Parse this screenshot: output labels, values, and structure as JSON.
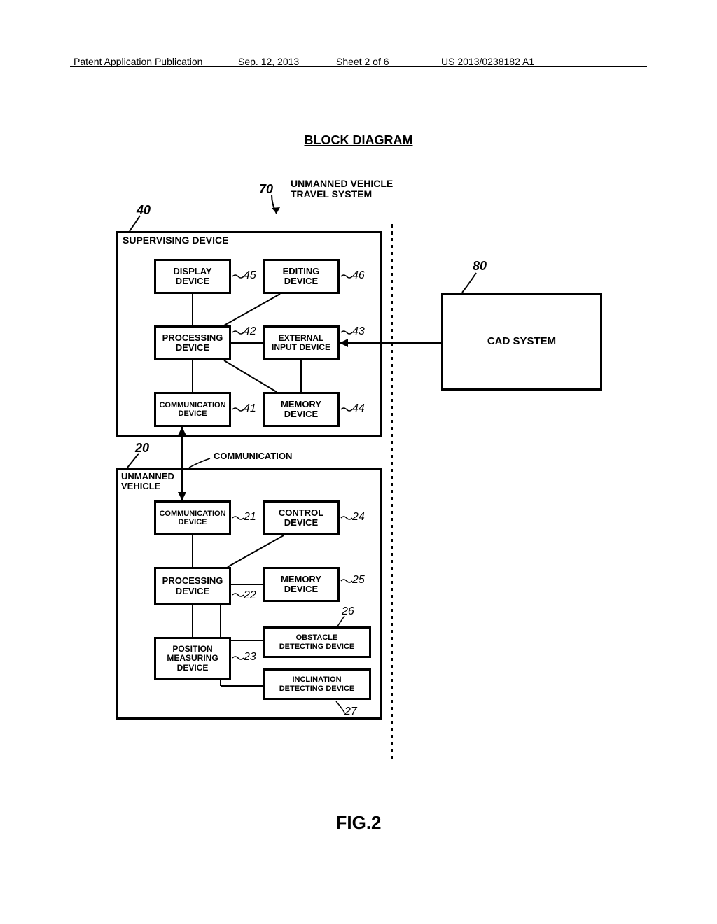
{
  "header": {
    "left": "Patent Application Publication",
    "date": "Sep. 12, 2013",
    "sheet": "Sheet 2 of 6",
    "pubno": "US 2013/0238182 A1"
  },
  "title": "BLOCK DIAGRAM",
  "figure_label": "FIG.2",
  "system": {
    "ref": "70",
    "label": "UNMANNED VEHICLE\nTRAVEL SYSTEM"
  },
  "cad": {
    "ref": "80",
    "label": "CAD SYSTEM"
  },
  "communication_label": "COMMUNICATION",
  "supervising": {
    "ref": "40",
    "title": "SUPERVISING DEVICE",
    "blocks": {
      "display": {
        "label": "DISPLAY\nDEVICE",
        "ref": "45"
      },
      "editing": {
        "label": "EDITING\nDEVICE",
        "ref": "46"
      },
      "processing": {
        "label": "PROCESSING\nDEVICE",
        "ref": "42"
      },
      "extinput": {
        "label": "EXTERNAL\nINPUT DEVICE",
        "ref": "43"
      },
      "comm": {
        "label": "COMMUNICATION\nDEVICE",
        "ref": "41"
      },
      "memory": {
        "label": "MEMORY\nDEVICE",
        "ref": "44"
      }
    }
  },
  "vehicle": {
    "ref": "20",
    "title": "UNMANNED\nVEHICLE",
    "blocks": {
      "comm": {
        "label": "COMMUNICATION\nDEVICE",
        "ref": "21"
      },
      "control": {
        "label": "CONTROL\nDEVICE",
        "ref": "24"
      },
      "processing": {
        "label": "PROCESSING\nDEVICE",
        "ref": "22"
      },
      "memory": {
        "label": "MEMORY\nDEVICE",
        "ref": "25"
      },
      "position": {
        "label": "POSITION\nMEASURING\nDEVICE",
        "ref": "23"
      },
      "obstacle": {
        "label": "OBSTACLE\nDETECTING DEVICE",
        "ref": "26"
      },
      "inclination": {
        "label": "INCLINATION\nDETECTING DEVICE",
        "ref": "27"
      }
    }
  },
  "style": {
    "stroke": "#000000",
    "stroke_width": 3,
    "thin_width": 2,
    "dash": "6,6",
    "background": "#ffffff",
    "font": "Arial"
  }
}
